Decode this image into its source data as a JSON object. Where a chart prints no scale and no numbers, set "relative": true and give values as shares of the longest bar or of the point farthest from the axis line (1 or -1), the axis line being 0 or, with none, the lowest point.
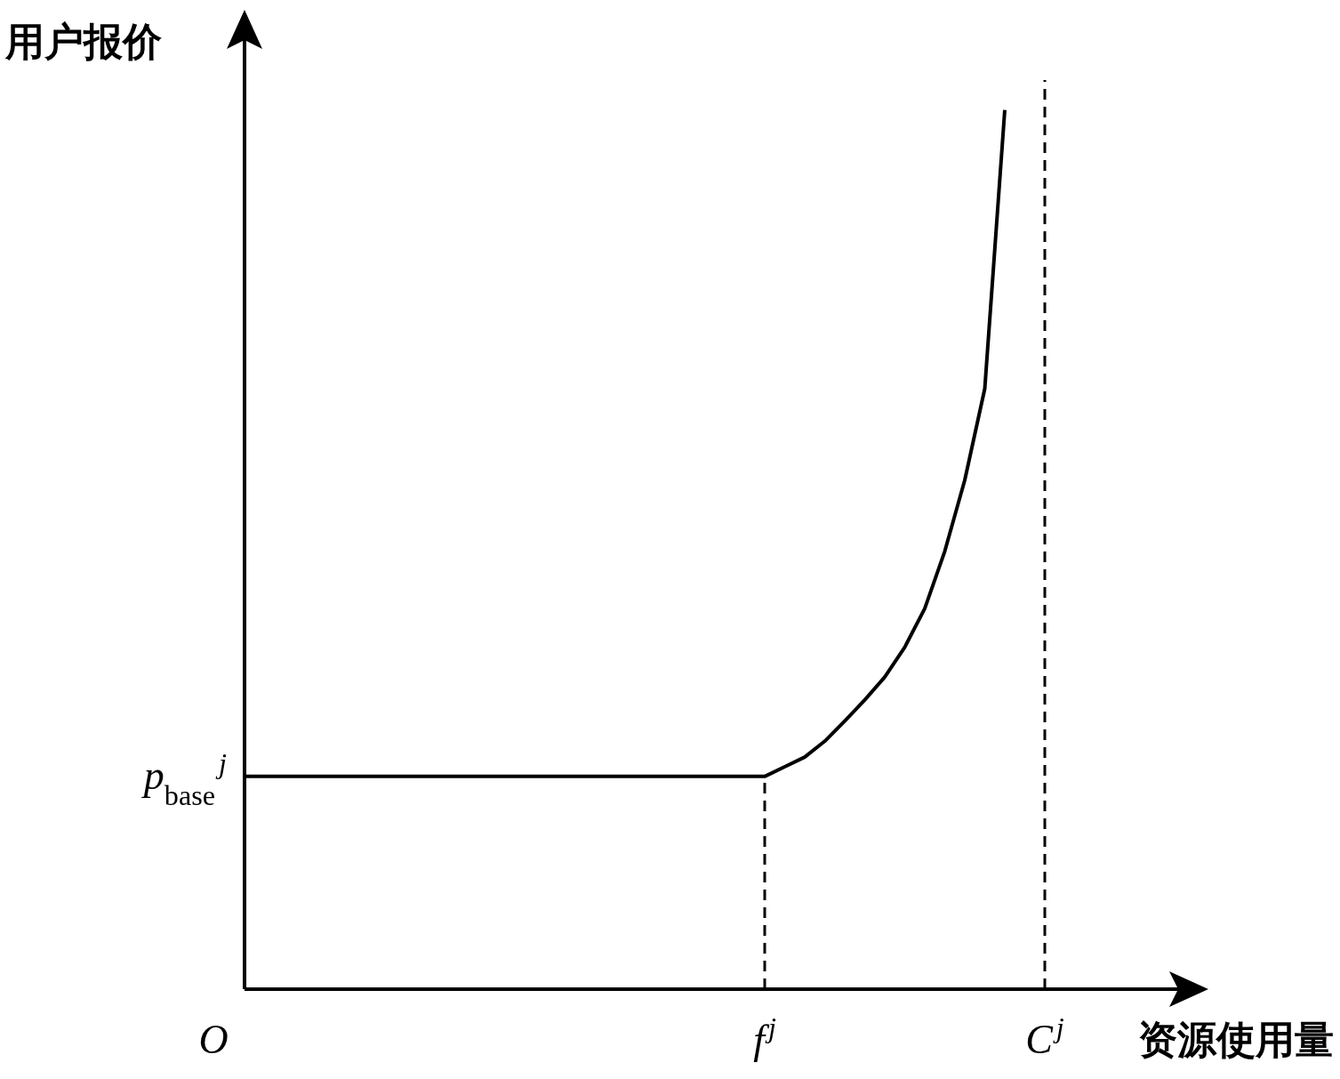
{
  "chart_data": {
    "type": "line",
    "xlabel": "资源使用量",
    "ylabel": "用户报价",
    "relative": true,
    "categories": [
      "O",
      null,
      null,
      null,
      null,
      null,
      null,
      null,
      null,
      null,
      null,
      null,
      null,
      null,
      null,
      null,
      null,
      null,
      null,
      null,
      null,
      null,
      null,
      null,
      null,
      null,
      "f$^{j}$",
      null,
      null,
      null,
      null,
      null,
      null,
      null,
      null,
      null,
      null,
      null,
      null,
      null,
      "C$^{j}$",
      null,
      null,
      null,
      null,
      null,
      null,
      null,
      null
    ],
    "series": [
      {
        "color": "#000000",
        "values": [
          0.242,
          0.242,
          0.242,
          0.242,
          0.242,
          0.242,
          0.242,
          0.242,
          0.242,
          0.242,
          0.242,
          0.242,
          0.242,
          0.242,
          0.242,
          0.242,
          0.242,
          0.242,
          0.242,
          0.242,
          0.242,
          0.242,
          0.242,
          0.242,
          0.242,
          0.242,
          0.242,
          0.253,
          0.264,
          0.282,
          0.305,
          0.329,
          0.355,
          0.389,
          0.433,
          0.498,
          0.579,
          0.683,
          1.0,
          null,
          null,
          null,
          null,
          null,
          null,
          null,
          null,
          null,
          null
        ]
      }
    ],
    "ref_lines": [
      {
        "axis": "x",
        "value": "f$^{j}$",
        "line_style": "dashed",
        "color": "#000000"
      },
      {
        "axis": "x",
        "value": "C$^{j}$",
        "line_style": "dashed",
        "color": "#000000"
      }
    ],
    "annotations": [
      {
        "text": "p$_{base}$$^{j}$",
        "x": "O",
        "y": 0.242
      }
    ]
  }
}
